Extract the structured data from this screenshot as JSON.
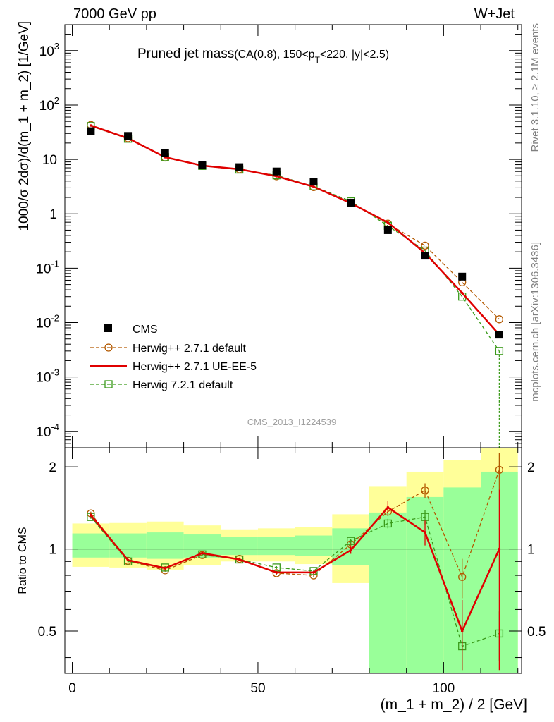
{
  "header": {
    "left": "7000 GeV pp",
    "right": "W+Jet"
  },
  "side_labels": {
    "rivet": "Rivet 3.1.10, ≥ 2.1M events",
    "mcplots": "mcplots.cern.ch [arXiv:1306.3436]"
  },
  "analysis_id": "CMS_2013_I1224539",
  "chart_data": [
    {
      "type": "scatter",
      "panel": "main",
      "title_main": "Pruned jet mass",
      "title_sub_pre": "(CA(0.8), 150<p",
      "title_sub_sub": "T",
      "title_sub_post": "<220, |y|<2.5)",
      "ylabel": "1000/σ 2dσ)/d(m_1 + m_2) [1/GeV]",
      "yscale": "log",
      "xlim": [
        -2,
        121
      ],
      "ylim": [
        5e-05,
        3000
      ],
      "x_ticks": [
        0,
        50,
        100
      ],
      "y_ticks": [
        {
          "v": 0.0001,
          "b": "10",
          "e": "-4"
        },
        {
          "v": 0.001,
          "b": "10",
          "e": "-3"
        },
        {
          "v": 0.01,
          "b": "10",
          "e": "-2"
        },
        {
          "v": 0.1,
          "b": "10",
          "e": "-1"
        },
        {
          "v": 1,
          "b": "1",
          "e": ""
        },
        {
          "v": 10,
          "b": "10",
          "e": ""
        },
        {
          "v": 100,
          "b": "10",
          "e": "2"
        },
        {
          "v": 1000,
          "b": "10",
          "e": "3"
        }
      ],
      "x": [
        5,
        15,
        25,
        35,
        45,
        55,
        65,
        75,
        85,
        95,
        105,
        115
      ],
      "series": [
        {
          "name": "CMS",
          "style": "data",
          "color": "#000000",
          "values": [
            33,
            27,
            13,
            8,
            7.2,
            6,
            3.9,
            1.6,
            0.5,
            0.17,
            0.07,
            0.006
          ]
        },
        {
          "name": "Herwig++ 2.7.1 default",
          "style": "circle",
          "color": "#b35900",
          "values": [
            43,
            24.5,
            10.8,
            7.6,
            6.6,
            4.9,
            3.1,
            1.6,
            0.66,
            0.26,
            0.055,
            0.0115
          ]
        },
        {
          "name": "Herwig++ 2.7.1 UE-EE-5",
          "style": "line",
          "color": "#e00000",
          "values": [
            42,
            24.5,
            11,
            7.7,
            6.6,
            4.9,
            3.15,
            1.57,
            0.69,
            0.19,
            0.035,
            0.006
          ]
        },
        {
          "name": "Herwig 7.2.1 default",
          "style": "square",
          "color": "#3a9a1a",
          "values": [
            41,
            24,
            11,
            7.6,
            6.5,
            5.1,
            3.2,
            1.7,
            0.6,
            0.21,
            0.03,
            0.003
          ]
        }
      ]
    },
    {
      "type": "scatter",
      "panel": "ratio",
      "ylabel": "Ratio to CMS",
      "xlabel": "(m_1 + m_2) / 2 [GeV]",
      "xlim": [
        -2,
        121
      ],
      "ylim": [
        0.35,
        2.35
      ],
      "x_ticks": [
        0,
        50,
        100
      ],
      "y_ticks": [
        0.5,
        1,
        2
      ],
      "y_ticklabels": [
        "0.5",
        "1",
        "2"
      ],
      "x": [
        5,
        15,
        25,
        35,
        45,
        55,
        65,
        75,
        85,
        95,
        105,
        115
      ],
      "bins": [
        [
          0,
          10
        ],
        [
          10,
          20
        ],
        [
          20,
          30
        ],
        [
          30,
          40
        ],
        [
          40,
          50
        ],
        [
          50,
          60
        ],
        [
          60,
          70
        ],
        [
          70,
          80
        ],
        [
          80,
          90
        ],
        [
          90,
          100
        ],
        [
          100,
          110
        ],
        [
          110,
          120
        ]
      ],
      "band_outer": [
        [
          0.86,
          1.24
        ],
        [
          0.855,
          1.245
        ],
        [
          0.84,
          1.26
        ],
        [
          0.87,
          1.22
        ],
        [
          0.9,
          1.18
        ],
        [
          0.9,
          1.19
        ],
        [
          0.88,
          1.2
        ],
        [
          0.75,
          1.34
        ],
        [
          0.35,
          1.7
        ],
        [
          0.35,
          1.92
        ],
        [
          0.35,
          2.12
        ],
        [
          0.35,
          2.35
        ]
      ],
      "band_inner": [
        [
          0.93,
          1.14
        ],
        [
          0.93,
          1.14
        ],
        [
          0.92,
          1.15
        ],
        [
          0.93,
          1.13
        ],
        [
          0.95,
          1.11
        ],
        [
          0.95,
          1.11
        ],
        [
          0.94,
          1.12
        ],
        [
          0.87,
          1.19
        ],
        [
          0.35,
          1.36
        ],
        [
          0.35,
          1.55
        ],
        [
          0.35,
          1.68
        ],
        [
          0.35,
          1.92
        ]
      ],
      "series": [
        {
          "name": "Herwig++ 2.7.1 default",
          "style": "circle",
          "color": "#b35900",
          "values": [
            1.35,
            0.905,
            0.835,
            0.95,
            0.92,
            0.815,
            0.8,
            1.04,
            1.37,
            1.64,
            0.79,
            1.95
          ],
          "err": [
            0.02,
            0.01,
            0.01,
            0.01,
            0.01,
            0.01,
            0.01,
            0.02,
            0.05,
            0.1,
            0.13,
            0.3
          ]
        },
        {
          "name": "Herwig++ 2.7.1 UE-EE-5",
          "style": "line",
          "color": "#e00000",
          "values": [
            1.33,
            0.91,
            0.85,
            0.965,
            0.915,
            0.82,
            0.82,
            0.99,
            1.42,
            1.15,
            0.5,
            1.0
          ],
          "err": [
            0.02,
            0.01,
            0.01,
            0.01,
            0.01,
            0.01,
            0.01,
            0.03,
            0.08,
            0.12,
            0.15,
            0.65
          ]
        },
        {
          "name": "Herwig 7.2.1 default",
          "style": "square",
          "color": "#3a9a1a",
          "values": [
            1.31,
            0.9,
            0.855,
            0.955,
            0.915,
            0.855,
            0.83,
            1.07,
            1.24,
            1.31,
            0.44,
            0.49
          ],
          "err": [
            0.02,
            0.01,
            0.01,
            0.01,
            0.01,
            0.01,
            0.01,
            0.02,
            0.05,
            0.08,
            0.1,
            0.1
          ]
        }
      ]
    }
  ]
}
